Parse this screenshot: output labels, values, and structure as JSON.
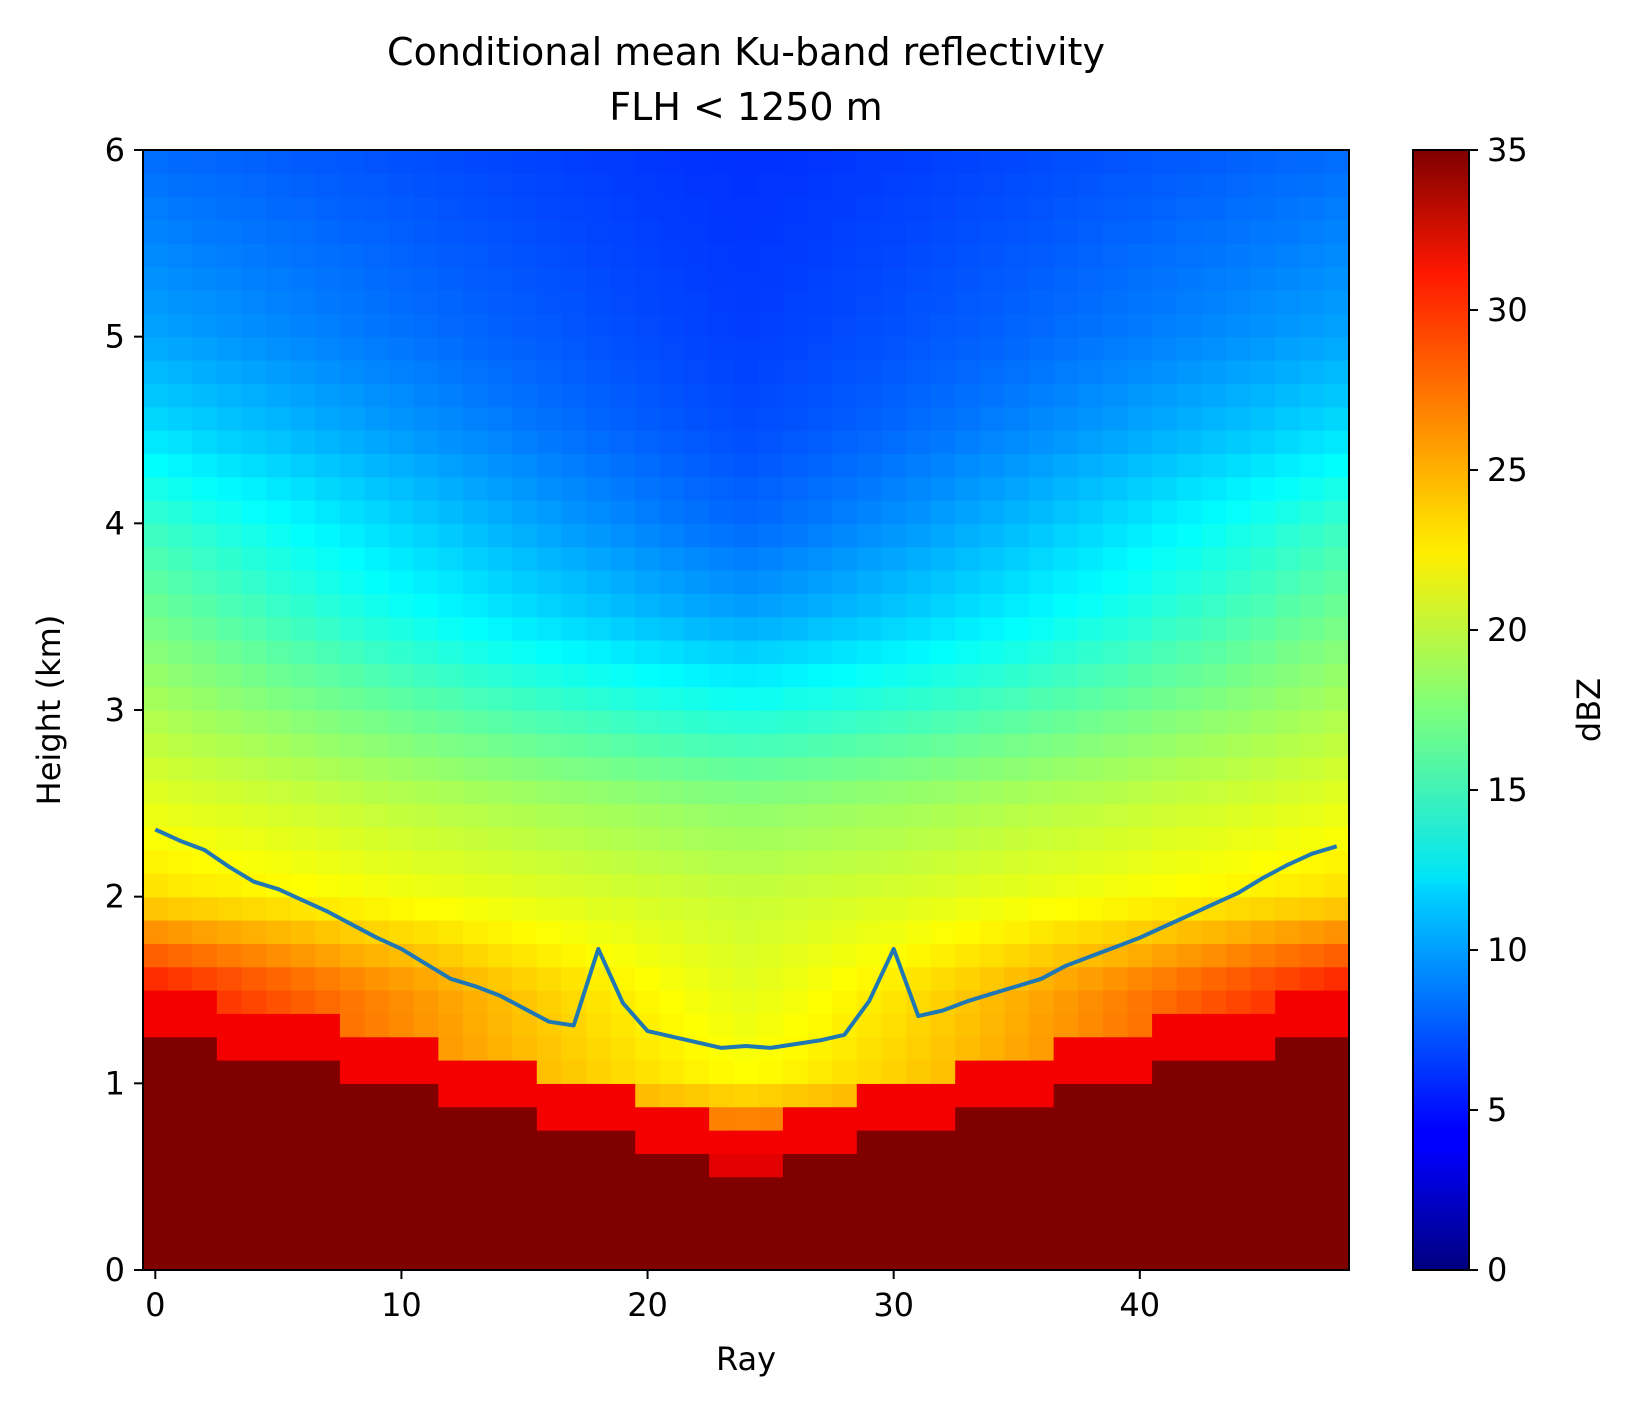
{
  "chart_data": {
    "type": "heatmap",
    "title": "Conditional mean Ku-band reflectivity",
    "subtitle": "FLH < 1250 m",
    "xlabel": "Ray",
    "ylabel": "Height (km)",
    "xlim": [
      -0.5,
      48.5
    ],
    "ylim": [
      0,
      6
    ],
    "xticks": [
      0,
      10,
      20,
      30,
      40
    ],
    "yticks": [
      0,
      1,
      2,
      3,
      4,
      5,
      6
    ],
    "grid": false,
    "colormap": "jet",
    "colorbar": {
      "label": "dBZ",
      "range": [
        0,
        35
      ],
      "ticks": [
        0,
        5,
        10,
        15,
        20,
        25,
        30,
        35
      ]
    },
    "heatmap": {
      "x": "rays 0 to 48",
      "y_bin_km": 0.125,
      "unit": "dBZ",
      "surface_clutter_top_km": {
        "edge_rays": 1.25,
        "nadir_rays": 0.5
      },
      "summary_profile_center_ray": [
        {
          "height_km": 0.5,
          "dBZ": 33
        },
        {
          "height_km": 1.0,
          "dBZ": 22
        },
        {
          "height_km": 1.5,
          "dBZ": 21
        },
        {
          "height_km": 2.0,
          "dBZ": 20
        },
        {
          "height_km": 2.5,
          "dBZ": 18
        },
        {
          "height_km": 3.0,
          "dBZ": 14
        },
        {
          "height_km": 3.5,
          "dBZ": 10
        },
        {
          "height_km": 4.0,
          "dBZ": 8
        },
        {
          "height_km": 4.5,
          "dBZ": 7
        },
        {
          "height_km": 5.0,
          "dBZ": 6.5
        },
        {
          "height_km": 6.0,
          "dBZ": 6
        }
      ],
      "summary_profile_edge_ray": [
        {
          "height_km": 1.5,
          "dBZ": 30
        },
        {
          "height_km": 2.0,
          "dBZ": 23
        },
        {
          "height_km": 2.5,
          "dBZ": 21
        },
        {
          "height_km": 3.0,
          "dBZ": 19
        },
        {
          "height_km": 3.5,
          "dBZ": 17
        },
        {
          "height_km": 4.0,
          "dBZ": 15
        },
        {
          "height_km": 4.5,
          "dBZ": 12
        },
        {
          "height_km": 5.0,
          "dBZ": 10
        },
        {
          "height_km": 6.0,
          "dBZ": 8
        }
      ]
    },
    "series": [
      {
        "type": "line",
        "color": "#1f77b4",
        "x": [
          0,
          1,
          2,
          3,
          4,
          5,
          6,
          7,
          8,
          9,
          10,
          11,
          12,
          13,
          14,
          15,
          16,
          17,
          18,
          19,
          20,
          21,
          22,
          23,
          24,
          25,
          26,
          27,
          28,
          29,
          30,
          31,
          32,
          33,
          34,
          35,
          36,
          37,
          38,
          39,
          40,
          41,
          42,
          43,
          44,
          45,
          46,
          47,
          48
        ],
        "values": [
          2.36,
          2.3,
          2.25,
          2.16,
          2.08,
          2.04,
          1.98,
          1.92,
          1.85,
          1.78,
          1.72,
          1.64,
          1.56,
          1.52,
          1.47,
          1.4,
          1.33,
          1.31,
          1.72,
          1.43,
          1.28,
          1.25,
          1.22,
          1.19,
          1.2,
          1.19,
          1.21,
          1.23,
          1.26,
          1.44,
          1.72,
          1.36,
          1.39,
          1.44,
          1.48,
          1.52,
          1.56,
          1.63,
          1.68,
          1.73,
          1.78,
          1.84,
          1.9,
          1.96,
          2.02,
          2.1,
          2.17,
          2.23,
          2.27
        ]
      }
    ]
  }
}
